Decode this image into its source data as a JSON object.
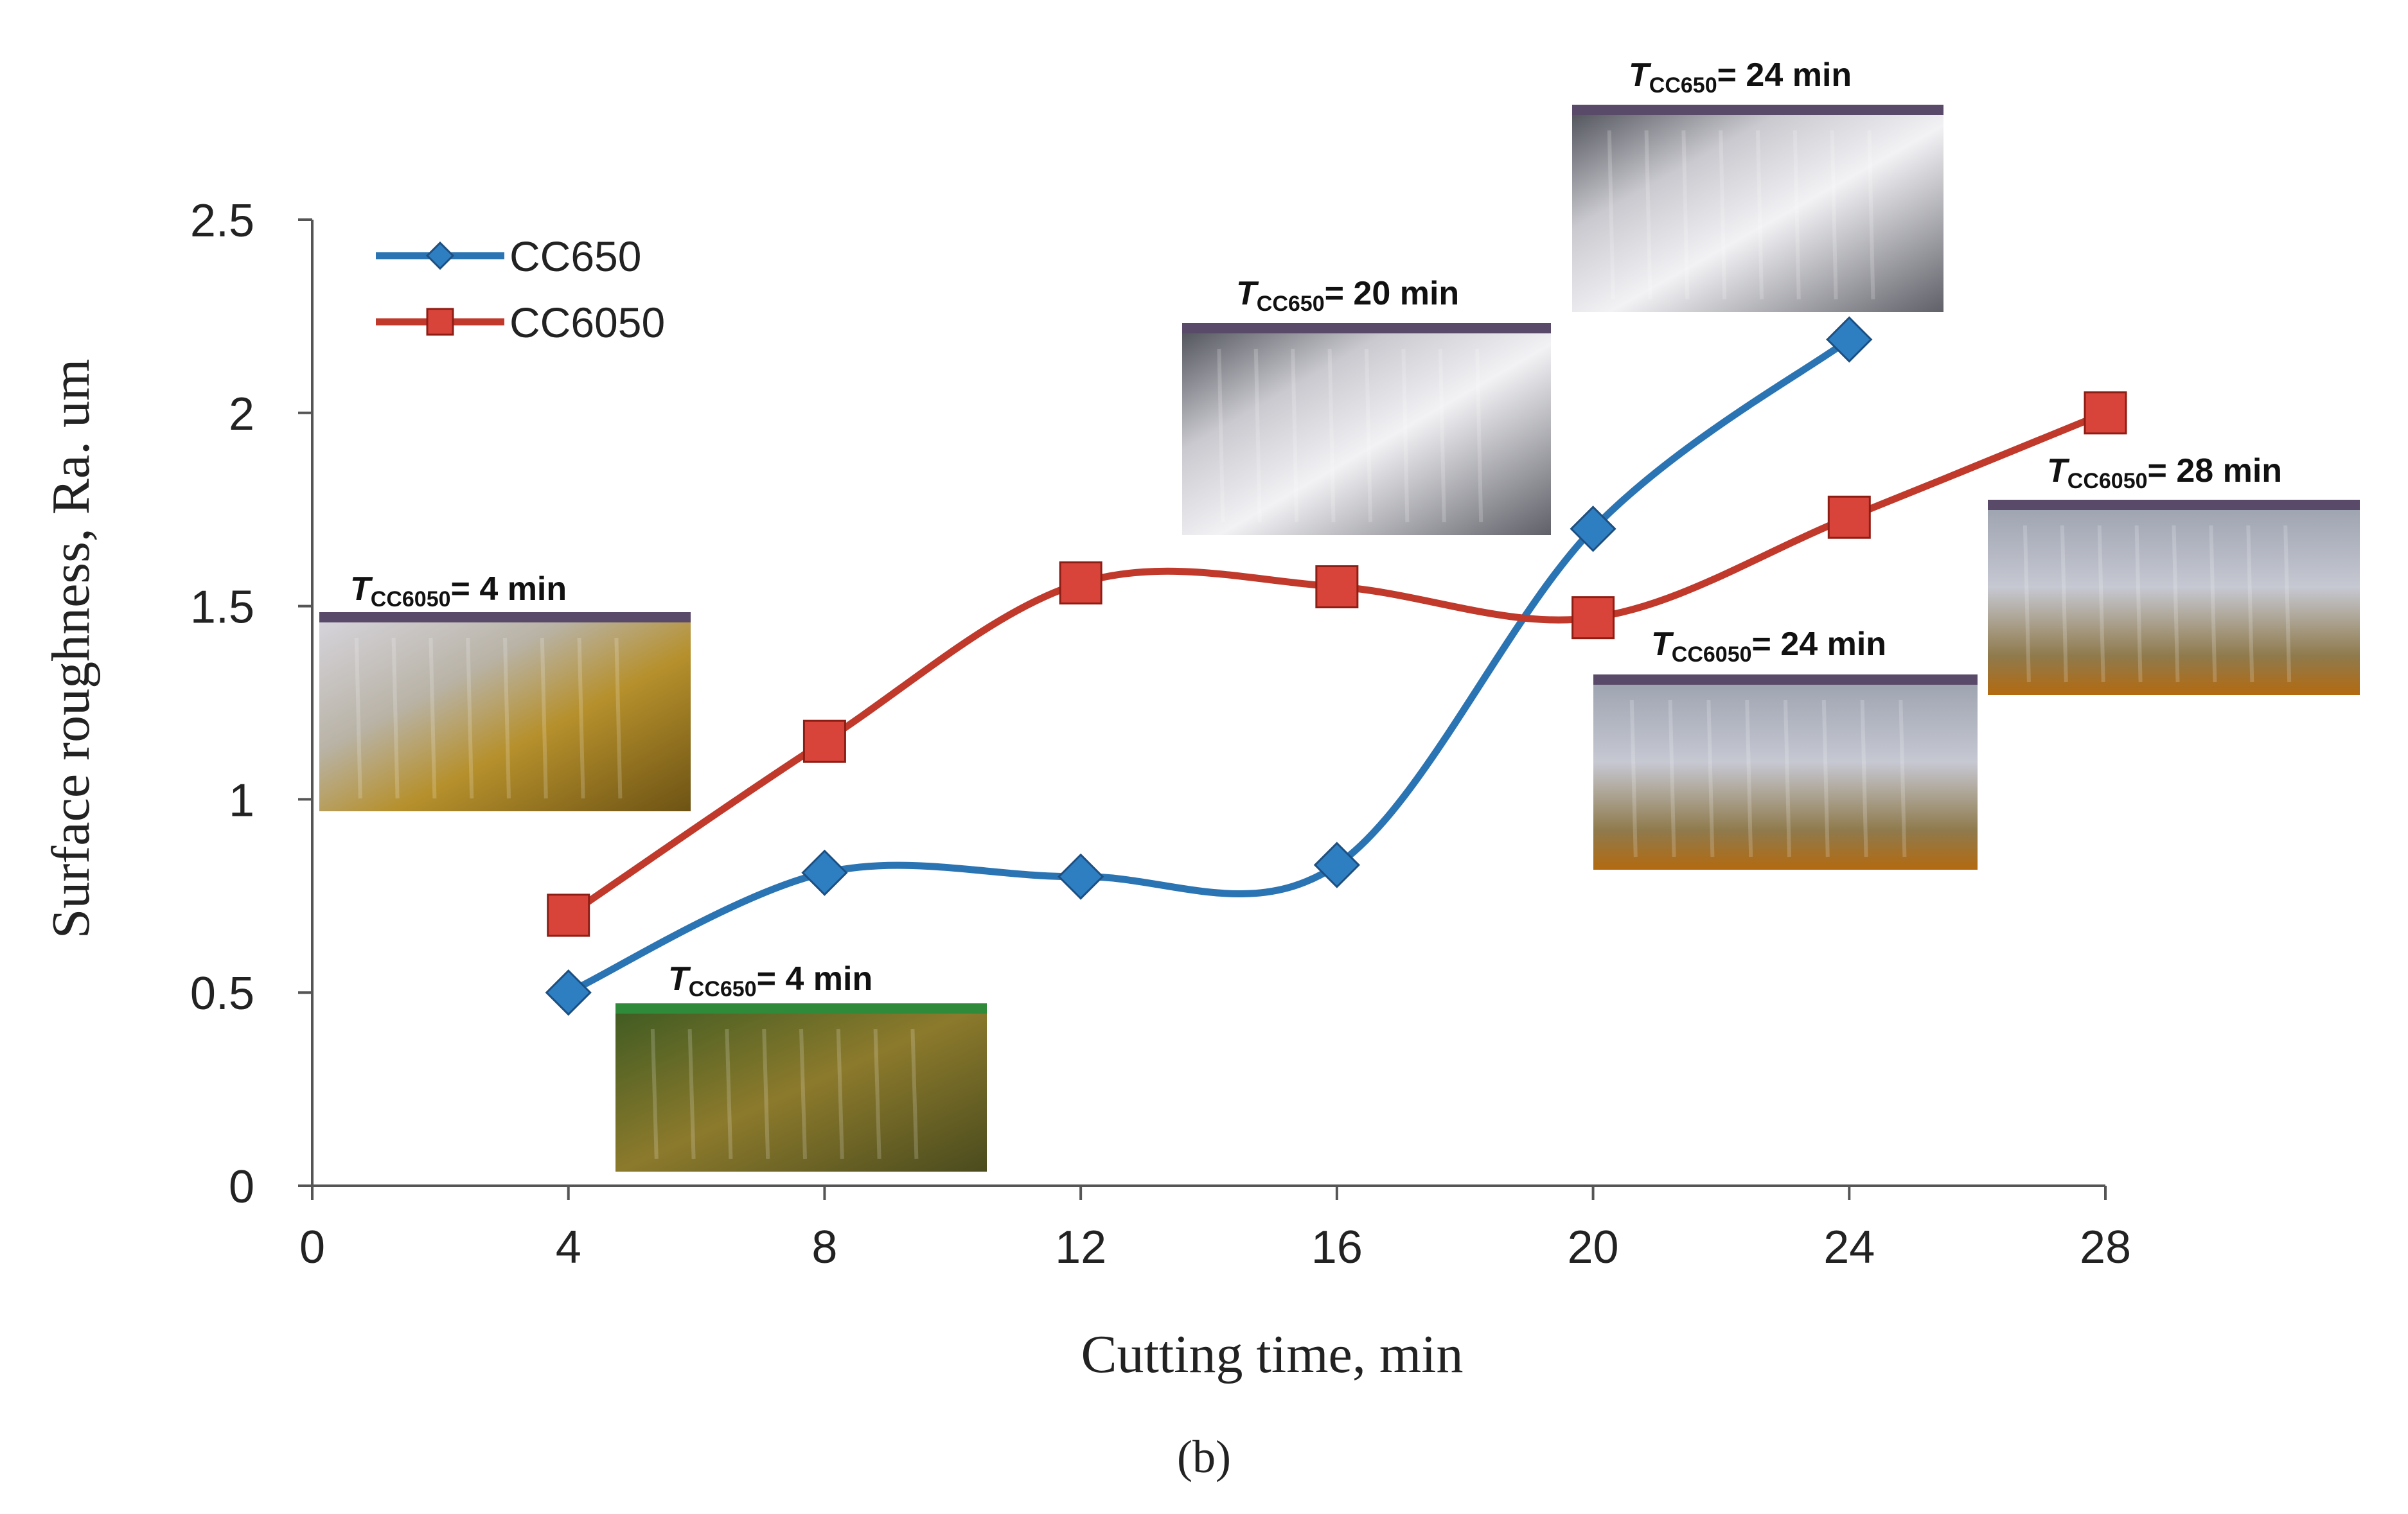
{
  "chart_data": {
    "type": "line",
    "title": "",
    "xlabel": "Cutting time, min",
    "ylabel": "Surface roughness,  Ra. um",
    "caption": "(b)",
    "x_ticks": [
      "0",
      "4",
      "8",
      "12",
      "16",
      "20",
      "24",
      "28"
    ],
    "y_ticks": [
      "0",
      "0.5",
      "1",
      "1.5",
      "2",
      "2.5"
    ],
    "xlim": [
      0,
      28
    ],
    "ylim": [
      0,
      2.5
    ],
    "grid": false,
    "legend_position": "top-left",
    "series": [
      {
        "name": "CC650",
        "color": "#2a74b4",
        "marker": "diamond",
        "x": [
          4,
          8,
          12,
          16,
          20,
          24
        ],
        "y": [
          0.5,
          0.81,
          0.8,
          0.83,
          1.7,
          2.19
        ]
      },
      {
        "name": "CC6050",
        "color": "#c0392b",
        "marker": "square",
        "x": [
          4,
          8,
          12,
          16,
          20,
          24,
          28
        ],
        "y": [
          0.7,
          1.15,
          1.56,
          1.55,
          1.47,
          1.73,
          2.0
        ]
      }
    ],
    "annotations": [
      {
        "t": "T",
        "sub": "CC6050",
        "rest": "= 4 min",
        "theme": "gold"
      },
      {
        "t": "T",
        "sub": "CC650",
        "rest": "= 4 min",
        "theme": "green"
      },
      {
        "t": "T",
        "sub": "CC650",
        "rest": "= 20 min",
        "theme": "silver"
      },
      {
        "t": "T",
        "sub": "CC650",
        "rest": "= 24 min",
        "theme": "silver"
      },
      {
        "t": "T",
        "sub": "CC6050",
        "rest": "= 24 min",
        "theme": "silvergold"
      },
      {
        "t": "T",
        "sub": "CC6050",
        "rest": "= 28 min",
        "theme": "silvergold"
      }
    ]
  }
}
